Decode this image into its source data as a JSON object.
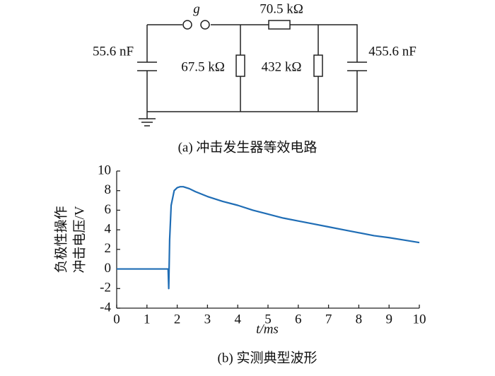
{
  "circuit": {
    "switch_label": "g",
    "series_resistor": "70.5 kΩ",
    "left_capacitor": "55.6 nF",
    "shunt_resistor_1": "67.5 kΩ",
    "shunt_resistor_2": "432 kΩ",
    "right_capacitor": "455.6 nF",
    "caption": "(a)  冲击发生器等效电路"
  },
  "chart_data": {
    "type": "line",
    "caption": "(b)  实测典型波形",
    "xlabel": "t/ms",
    "ylabel_lines": [
      "负极性操作",
      "冲击电压/V"
    ],
    "x": [
      0,
      0.5,
      1,
      1.5,
      1.7,
      1.72,
      1.75,
      1.8,
      1.9,
      2.0,
      2.1,
      2.2,
      2.4,
      2.6,
      3,
      3.5,
      4,
      4.5,
      5,
      5.5,
      6,
      6.5,
      7,
      7.5,
      8,
      8.5,
      9,
      9.5,
      10
    ],
    "series": [
      {
        "color": "#1f6db5",
        "values": [
          0,
          0,
          0,
          0,
          0,
          -2,
          3,
          6.5,
          8.0,
          8.3,
          8.4,
          8.4,
          8.2,
          7.9,
          7.4,
          6.9,
          6.5,
          6.0,
          5.6,
          5.2,
          4.9,
          4.6,
          4.3,
          4.0,
          3.7,
          3.4,
          3.2,
          2.95,
          2.7
        ]
      }
    ],
    "xlim": [
      0,
      10
    ],
    "ylim": [
      -4,
      10
    ],
    "xticks": [
      0,
      1,
      2,
      3,
      4,
      5,
      6,
      7,
      8,
      9,
      10
    ],
    "yticks": [
      -4,
      -2,
      0,
      2,
      4,
      6,
      8,
      10
    ]
  }
}
